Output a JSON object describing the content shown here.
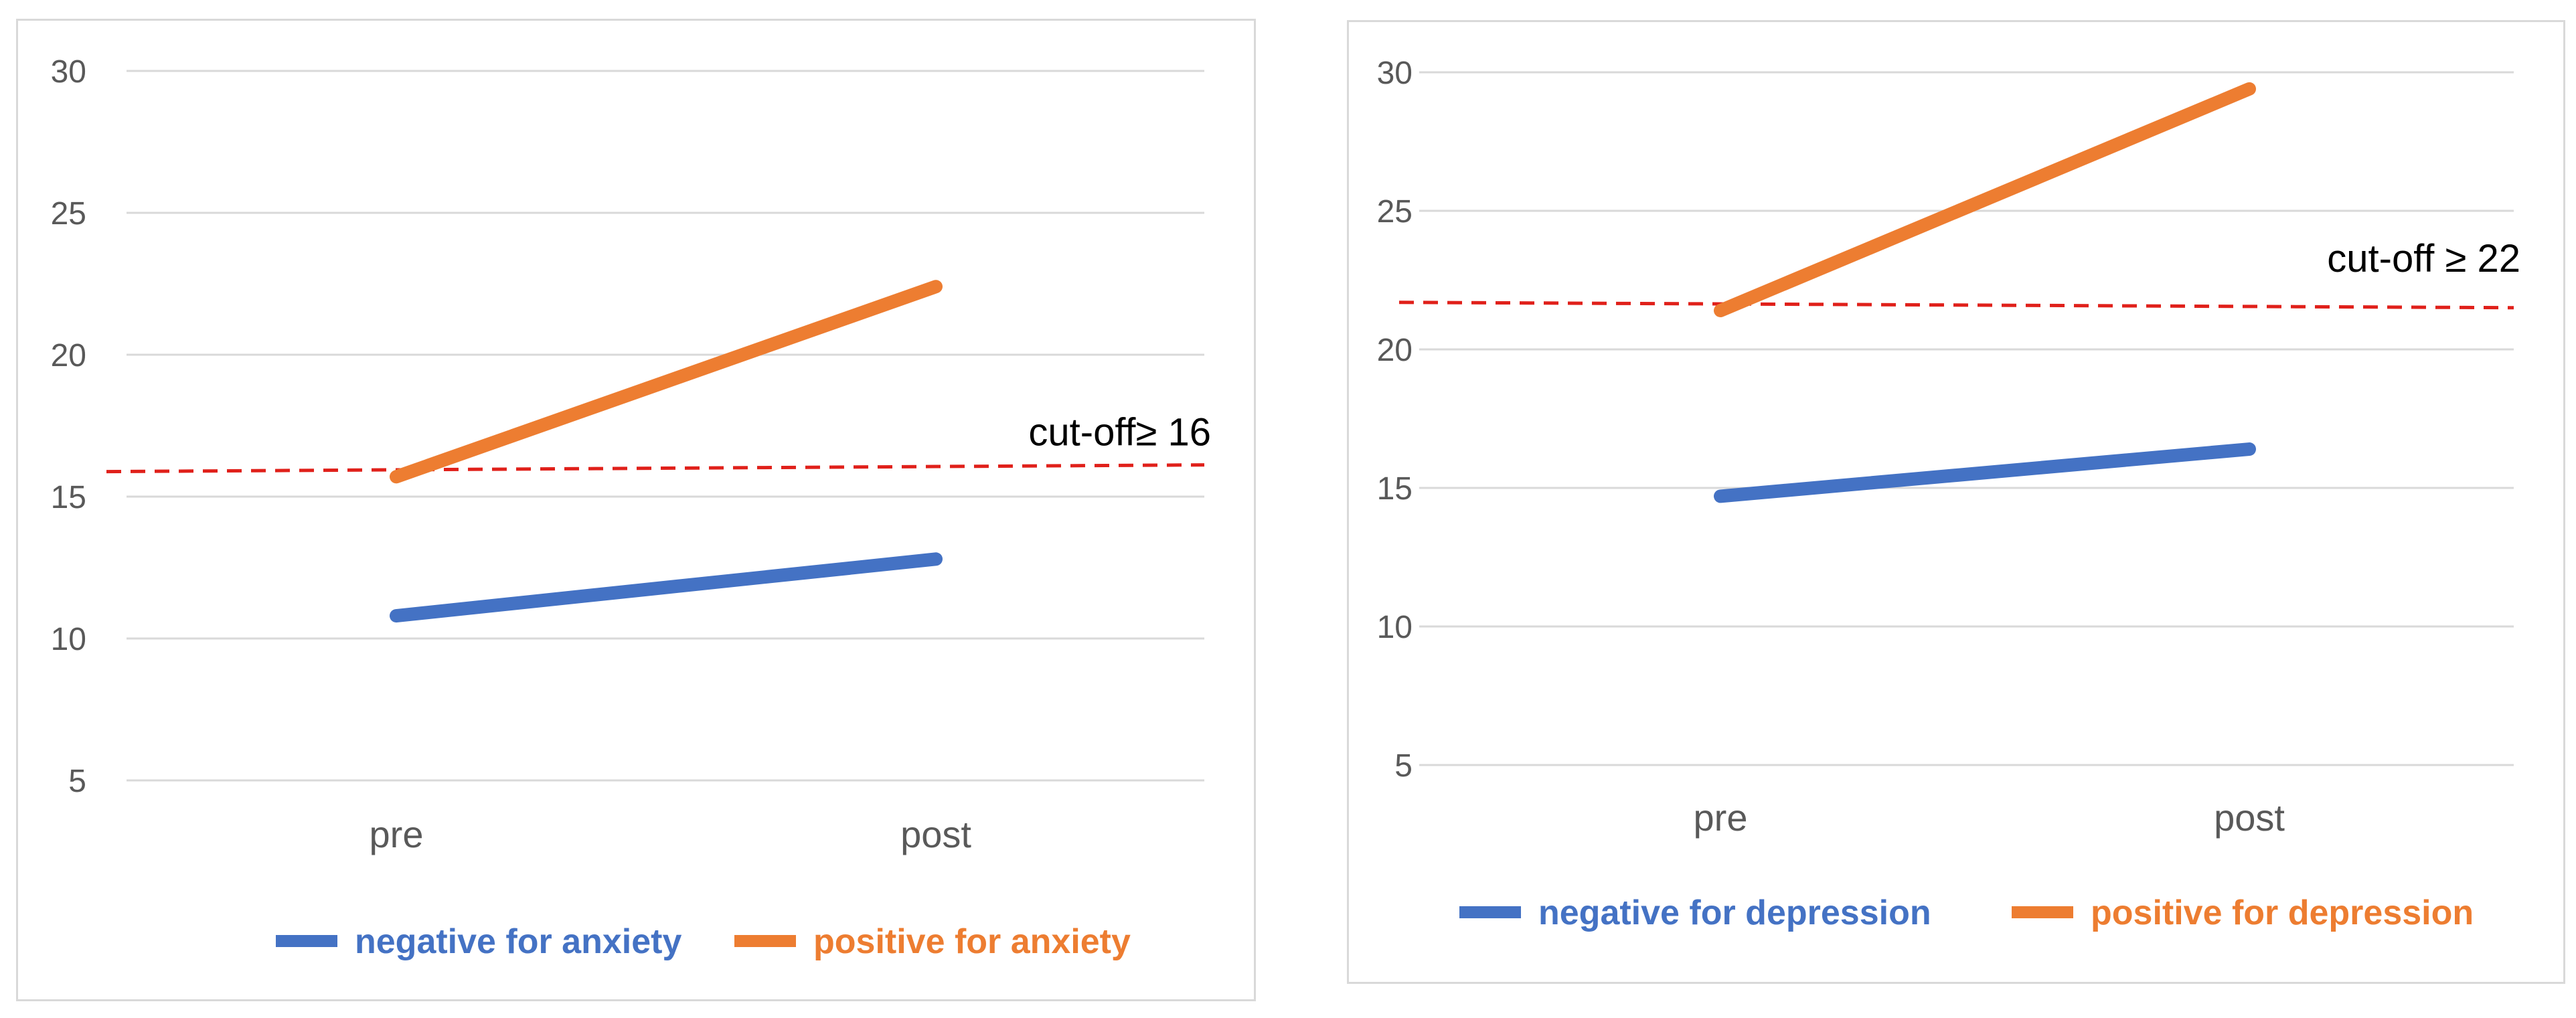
{
  "chart_data": [
    {
      "type": "line",
      "categories": [
        "pre",
        "post"
      ],
      "series": [
        {
          "name": "negative for anxiety",
          "values": [
            10.8,
            12.8
          ],
          "color": "#4472C4"
        },
        {
          "name": "positive for anxiety",
          "values": [
            15.7,
            22.4
          ],
          "color": "#ED7D31"
        }
      ],
      "yticks": [
        "5",
        "10",
        "15",
        "20",
        "25",
        "30"
      ],
      "ylim": [
        5,
        30
      ],
      "grid": true,
      "legend": "bottom",
      "threshold": {
        "value": 16,
        "label": "cut-off≥ 16",
        "color": "#E0201A",
        "style": "dashed"
      }
    },
    {
      "type": "line",
      "categories": [
        "pre",
        "post"
      ],
      "series": [
        {
          "name": "negative for depression",
          "values": [
            14.7,
            16.4
          ],
          "color": "#4472C4"
        },
        {
          "name": "positive for depression",
          "values": [
            21.4,
            29.4
          ],
          "color": "#ED7D31"
        }
      ],
      "yticks": [
        "5",
        "10",
        "15",
        "20",
        "25",
        "30"
      ],
      "ylim": [
        5,
        30
      ],
      "grid": true,
      "legend": "bottom",
      "threshold": {
        "value": 21.6,
        "label": "cut-off ≥ 22",
        "color": "#E0201A",
        "style": "dashed"
      }
    }
  ]
}
